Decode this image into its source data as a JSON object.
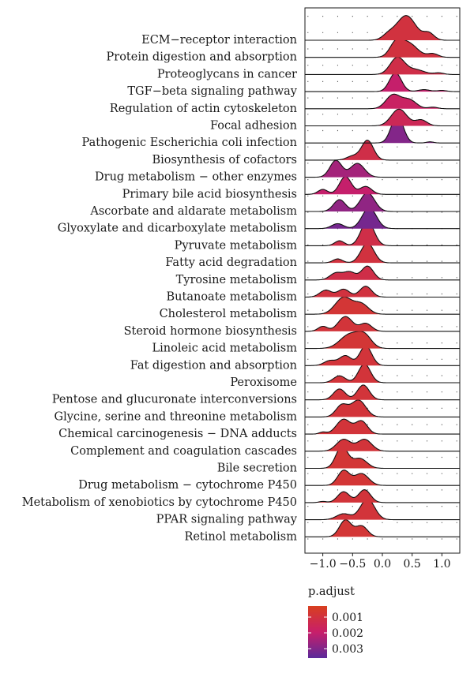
{
  "chart_data": {
    "type": "ridgeline",
    "title": "",
    "xlabel": "",
    "ylabel": "",
    "xlim": [
      -1.3,
      1.3
    ],
    "x_ticks": [
      -1.0,
      -0.5,
      0.0,
      0.5,
      1.0
    ],
    "x_tick_labels": [
      "−1.0",
      "−0.5",
      "0.0",
      "0.5",
      "1.0"
    ],
    "grid": "dotted",
    "legend": {
      "title": "p.adjust",
      "placement": "bottom-left",
      "colors": [
        "#d8401f",
        "#c81f6a",
        "#5b2a9a"
      ],
      "range": [
        0.0003,
        0.0036
      ],
      "ticks": [
        0.001,
        0.002,
        0.003
      ],
      "tick_labels": [
        "0.001",
        "0.002",
        "0.003"
      ]
    },
    "categories": [
      "ECM−receptor interaction",
      "Protein digestion and absorption",
      "Proteoglycans in cancer",
      "TGF−beta signaling pathway",
      "Regulation of actin cytoskeleton",
      "Focal adhesion",
      "Pathogenic Escherichia coli infection",
      "Biosynthesis of cofactors",
      "Drug metabolism − other enzymes",
      "Primary bile acid biosynthesis",
      "Ascorbate and aldarate metabolism",
      "Glyoxylate and dicarboxylate metabolism",
      "Pyruvate metabolism",
      "Fatty acid degradation",
      "Tyrosine metabolism",
      "Butanoate metabolism",
      "Cholesterol metabolism",
      "Steroid hormone biosynthesis",
      "Linoleic acid metabolism",
      "Fat digestion and absorption",
      "Peroxisome",
      "Pentose and glucuronate interconversions",
      "Glycine, serine and threonine metabolism",
      "Chemical carcinogenesis − DNA adducts",
      "Complement and coagulation cascades",
      "Bile secretion",
      "Drug metabolism − cytochrome P450",
      "Metabolism of xenobiotics by cytochrome P450",
      "PPAR signaling pathway",
      "Retinol metabolism"
    ],
    "series": [
      {
        "p_adjust": 0.001,
        "peaks": [
          [
            0.4,
            1.25,
            0.16
          ],
          [
            0.78,
            0.35,
            0.09
          ],
          [
            0.1,
            0.25,
            0.1
          ]
        ]
      },
      {
        "p_adjust": 0.001,
        "peaks": [
          [
            0.42,
            0.75,
            0.16
          ],
          [
            0.22,
            0.55,
            0.1
          ],
          [
            0.85,
            0.18,
            0.09
          ]
        ]
      },
      {
        "p_adjust": 0.0012,
        "peaks": [
          [
            0.25,
            0.85,
            0.12
          ],
          [
            0.55,
            0.25,
            0.15
          ],
          [
            0.95,
            0.08,
            0.08
          ]
        ]
      },
      {
        "p_adjust": 0.002,
        "peaks": [
          [
            0.22,
            0.95,
            0.1
          ],
          [
            0.7,
            0.1,
            0.1
          ],
          [
            1.0,
            0.06,
            0.08
          ]
        ]
      },
      {
        "p_adjust": 0.0018,
        "peaks": [
          [
            0.18,
            0.7,
            0.12
          ],
          [
            0.45,
            0.45,
            0.12
          ],
          [
            0.85,
            0.08,
            0.08
          ]
        ]
      },
      {
        "p_adjust": 0.0015,
        "peaks": [
          [
            0.28,
            0.85,
            0.13
          ],
          [
            0.65,
            0.3,
            0.1
          ]
        ]
      },
      {
        "p_adjust": 0.003,
        "peaks": [
          [
            0.25,
            1.4,
            0.1
          ],
          [
            0.8,
            0.06,
            0.06
          ]
        ]
      },
      {
        "p_adjust": 0.0012,
        "peaks": [
          [
            -0.25,
            1.0,
            0.1
          ],
          [
            -0.5,
            0.2,
            0.1
          ]
        ]
      },
      {
        "p_adjust": 0.0025,
        "peaks": [
          [
            -0.78,
            0.85,
            0.1
          ],
          [
            -0.42,
            0.7,
            0.12
          ]
        ]
      },
      {
        "p_adjust": 0.002,
        "peaks": [
          [
            -1.0,
            0.25,
            0.08
          ],
          [
            -0.62,
            0.9,
            0.1
          ],
          [
            -0.28,
            0.4,
            0.1
          ]
        ]
      },
      {
        "p_adjust": 0.0028,
        "peaks": [
          [
            -0.72,
            0.6,
            0.1
          ],
          [
            -0.25,
            0.95,
            0.12
          ]
        ]
      },
      {
        "p_adjust": 0.0032,
        "peaks": [
          [
            -0.75,
            0.25,
            0.1
          ],
          [
            -0.22,
            1.05,
            0.12
          ]
        ]
      },
      {
        "p_adjust": 0.0012,
        "peaks": [
          [
            -0.72,
            0.25,
            0.08
          ],
          [
            -0.25,
            1.25,
            0.11
          ]
        ]
      },
      {
        "p_adjust": 0.001,
        "peaks": [
          [
            -0.75,
            0.2,
            0.08
          ],
          [
            -0.25,
            1.0,
            0.11
          ]
        ]
      },
      {
        "p_adjust": 0.0012,
        "peaks": [
          [
            -0.78,
            0.35,
            0.1
          ],
          [
            -0.55,
            0.4,
            0.1
          ],
          [
            -0.25,
            0.7,
            0.1
          ]
        ]
      },
      {
        "p_adjust": 0.001,
        "peaks": [
          [
            -0.95,
            0.35,
            0.1
          ],
          [
            -0.65,
            0.4,
            0.1
          ],
          [
            -0.28,
            0.55,
            0.1
          ]
        ]
      },
      {
        "p_adjust": 0.0008,
        "peaks": [
          [
            -0.65,
            0.85,
            0.14
          ],
          [
            -0.35,
            0.5,
            0.12
          ]
        ]
      },
      {
        "p_adjust": 0.0009,
        "peaks": [
          [
            -1.0,
            0.25,
            0.08
          ],
          [
            -0.62,
            0.75,
            0.12
          ],
          [
            -0.28,
            0.4,
            0.1
          ]
        ]
      },
      {
        "p_adjust": 0.0008,
        "peaks": [
          [
            -0.55,
            0.7,
            0.16
          ],
          [
            -0.3,
            0.6,
            0.12
          ]
        ]
      },
      {
        "p_adjust": 0.0009,
        "peaks": [
          [
            -0.88,
            0.25,
            0.1
          ],
          [
            -0.62,
            0.5,
            0.1
          ],
          [
            -0.28,
            1.0,
            0.1
          ]
        ]
      },
      {
        "p_adjust": 0.0009,
        "peaks": [
          [
            -0.72,
            0.35,
            0.1
          ],
          [
            -0.3,
            0.95,
            0.1
          ]
        ]
      },
      {
        "p_adjust": 0.0009,
        "peaks": [
          [
            -0.72,
            0.55,
            0.1
          ],
          [
            -0.32,
            0.75,
            0.1
          ]
        ]
      },
      {
        "p_adjust": 0.0009,
        "peaks": [
          [
            -0.68,
            0.6,
            0.1
          ],
          [
            -0.4,
            0.85,
            0.12
          ]
        ]
      },
      {
        "p_adjust": 0.0009,
        "peaks": [
          [
            -1.0,
            0.1,
            0.06
          ],
          [
            -0.65,
            0.75,
            0.12
          ],
          [
            -0.35,
            0.65,
            0.1
          ]
        ]
      },
      {
        "p_adjust": 0.0009,
        "peaks": [
          [
            -0.65,
            0.6,
            0.12
          ],
          [
            -0.3,
            0.6,
            0.12
          ]
        ]
      },
      {
        "p_adjust": 0.0008,
        "peaks": [
          [
            -0.68,
            1.1,
            0.1
          ],
          [
            -0.38,
            0.5,
            0.12
          ]
        ]
      },
      {
        "p_adjust": 0.0008,
        "peaks": [
          [
            -0.65,
            0.75,
            0.1
          ],
          [
            -0.35,
            0.6,
            0.12
          ]
        ]
      },
      {
        "p_adjust": 0.0009,
        "peaks": [
          [
            -1.0,
            0.06,
            0.06
          ],
          [
            -0.65,
            0.55,
            0.1
          ],
          [
            -0.3,
            0.65,
            0.1
          ]
        ]
      },
      {
        "p_adjust": 0.0009,
        "peaks": [
          [
            -0.65,
            0.3,
            0.12
          ],
          [
            -0.25,
            1.05,
            0.12
          ]
        ]
      },
      {
        "p_adjust": 0.0008,
        "peaks": [
          [
            -0.62,
            0.85,
            0.1
          ],
          [
            -0.35,
            0.55,
            0.1
          ]
        ]
      }
    ]
  }
}
